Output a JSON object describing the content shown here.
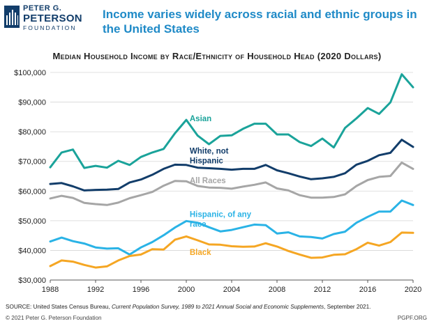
{
  "header": {
    "logo_line1": "PETER G.",
    "logo_line2": "PETERSON",
    "logo_line3": "FOUNDATION",
    "headline": "Income varies widely across racial and ethnic groups in the United States"
  },
  "chart_data": {
    "type": "line",
    "title": "Median Household Income by Race/Ethnicity of Household Head (2020 Dollars)",
    "xlabel": "",
    "ylabel": "",
    "x": [
      1988,
      1989,
      1990,
      1991,
      1992,
      1993,
      1994,
      1995,
      1996,
      1997,
      1998,
      1999,
      2000,
      2001,
      2002,
      2003,
      2004,
      2005,
      2006,
      2007,
      2008,
      2009,
      2010,
      2011,
      2012,
      2013,
      2014,
      2015,
      2016,
      2017,
      2018,
      2019,
      2020
    ],
    "xlim": [
      1988,
      2020
    ],
    "ylim": [
      30000,
      100000
    ],
    "xticks": [
      1988,
      1992,
      1996,
      2000,
      2004,
      2008,
      2012,
      2016,
      2020
    ],
    "yticks": [
      30000,
      40000,
      50000,
      60000,
      70000,
      80000,
      90000,
      100000
    ],
    "ytick_labels": [
      "$30,000",
      "$40,000",
      "$50,000",
      "$60,000",
      "$70,000",
      "$80,000",
      "$90,000",
      "$100,000"
    ],
    "grid": true,
    "series": [
      {
        "name": "Asian",
        "label_lines": [
          "Asian"
        ],
        "label_at": [
          2000.3,
          83500
        ],
        "color": "#1aa39a",
        "values": [
          68000,
          73000,
          74000,
          67800,
          68500,
          67900,
          70200,
          68800,
          71500,
          73000,
          74200,
          79500,
          84000,
          78700,
          75800,
          78600,
          78800,
          81000,
          82700,
          82700,
          79100,
          79100,
          76500,
          75200,
          77700,
          74700,
          81300,
          84500,
          88000,
          86000,
          89900,
          99400,
          95000
        ]
      },
      {
        "name": "White, not Hispanic",
        "label_lines": [
          "White, not",
          "Hispanic"
        ],
        "label_at": [
          2000.3,
          72600
        ],
        "color": "#123d6a",
        "values": [
          62400,
          62700,
          61600,
          60200,
          60400,
          60500,
          60700,
          62900,
          63900,
          65500,
          67500,
          68900,
          68800,
          67900,
          67700,
          67500,
          67200,
          67500,
          67500,
          68800,
          67000,
          66000,
          64900,
          64000,
          64300,
          64800,
          66000,
          68900,
          70200,
          72100,
          72900,
          77300,
          74900
        ]
      },
      {
        "name": "All Races",
        "label_lines": [
          "All Races"
        ],
        "label_at": [
          2000.3,
          62700
        ],
        "color": "#a6a6a6",
        "values": [
          57500,
          58400,
          57700,
          56000,
          55600,
          55300,
          56100,
          57600,
          58600,
          59700,
          61800,
          63400,
          63300,
          61700,
          61200,
          61100,
          60800,
          61500,
          62100,
          62900,
          60900,
          60200,
          58600,
          57800,
          57800,
          58000,
          58900,
          61700,
          63700,
          64800,
          65100,
          69600,
          67500
        ]
      },
      {
        "name": "Hispanic, of any race",
        "label_lines": [
          "Hispanic, of any",
          "race"
        ],
        "label_at": [
          2000.3,
          51300
        ],
        "color": "#2ab3e6",
        "values": [
          43000,
          44300,
          43100,
          42300,
          41000,
          40600,
          40700,
          38600,
          41000,
          42800,
          45100,
          47700,
          49900,
          49300,
          47800,
          46400,
          46900,
          47800,
          48700,
          48500,
          45700,
          46100,
          44700,
          44500,
          44000,
          45500,
          46300,
          49300,
          51300,
          53100,
          53100,
          56800,
          55300
        ]
      },
      {
        "name": "Black",
        "label_lines": [
          "Black"
        ],
        "label_at": [
          2000.3,
          38400
        ],
        "color": "#f5a623",
        "values": [
          34700,
          36600,
          36200,
          35100,
          34200,
          34600,
          36600,
          38100,
          38600,
          40400,
          40300,
          43600,
          44700,
          43400,
          42000,
          41900,
          41400,
          41200,
          41300,
          42400,
          41300,
          39800,
          38600,
          37500,
          37600,
          38500,
          38700,
          40400,
          42600,
          41600,
          42800,
          46000,
          45900
        ]
      }
    ]
  },
  "footer": {
    "source_prefix": "SOURCE: United States Census Bureau, ",
    "source_italic": "Current Population Survey, 1989 to 2021 Annual Social and Economic Supplements",
    "source_suffix": ", September 2021.",
    "copyright": "© 2021 Peter G. Peterson Foundation",
    "site": "PGPF.ORG"
  }
}
